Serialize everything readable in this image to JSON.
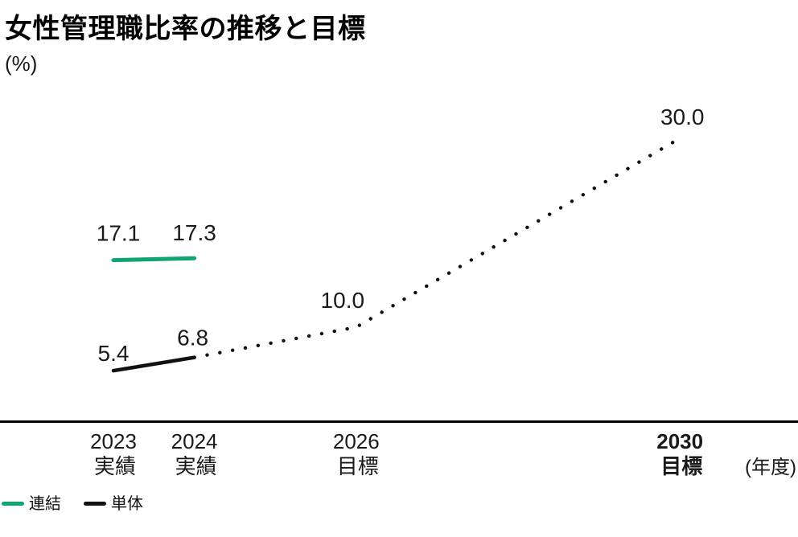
{
  "header": {
    "title": "女性管理職比率の推移と目標",
    "unit_label": "(%)"
  },
  "x_axis": {
    "unit_label": "(年度)"
  },
  "legend": {
    "items": [
      {
        "label": "連結",
        "color": "#0ea473",
        "line": "solid"
      },
      {
        "label": "単体",
        "color": "#111111",
        "line": "solid"
      }
    ]
  },
  "chart_data": {
    "type": "line",
    "title": "女性管理職比率の推移と目標",
    "ylabel": "(%)",
    "xlabel": "(年度)",
    "ylim": [
      0,
      34
    ],
    "grid": false,
    "legend_position": "bottom-left",
    "categories": [
      {
        "year": "2023",
        "kind": "実績",
        "emphasis": false
      },
      {
        "year": "2024",
        "kind": "実績",
        "emphasis": false
      },
      {
        "year": "2026",
        "kind": "目標",
        "emphasis": false
      },
      {
        "year": "2030",
        "kind": "目標",
        "emphasis": true
      }
    ],
    "series": [
      {
        "name": "連結",
        "segment": "actual",
        "line": "solid",
        "color": "#0ea473",
        "points": [
          {
            "year": 2023,
            "value": 17.1,
            "label": "17.1"
          },
          {
            "year": 2024,
            "value": 17.3,
            "label": "17.3"
          }
        ]
      },
      {
        "name": "単体",
        "segment": "actual",
        "line": "solid",
        "color": "#111111",
        "points": [
          {
            "year": 2023,
            "value": 5.4,
            "label": "5.4"
          },
          {
            "year": 2024,
            "value": 6.8,
            "label": "6.8"
          }
        ]
      },
      {
        "name": "単体（目標）",
        "segment": "target",
        "line": "dotted",
        "color": "#111111",
        "points": [
          {
            "year": 2024,
            "value": 6.8,
            "label": ""
          },
          {
            "year": 2026,
            "value": 10.0,
            "label": "10.0"
          },
          {
            "year": 2030,
            "value": 30.0,
            "label": "30.0"
          }
        ]
      }
    ]
  }
}
